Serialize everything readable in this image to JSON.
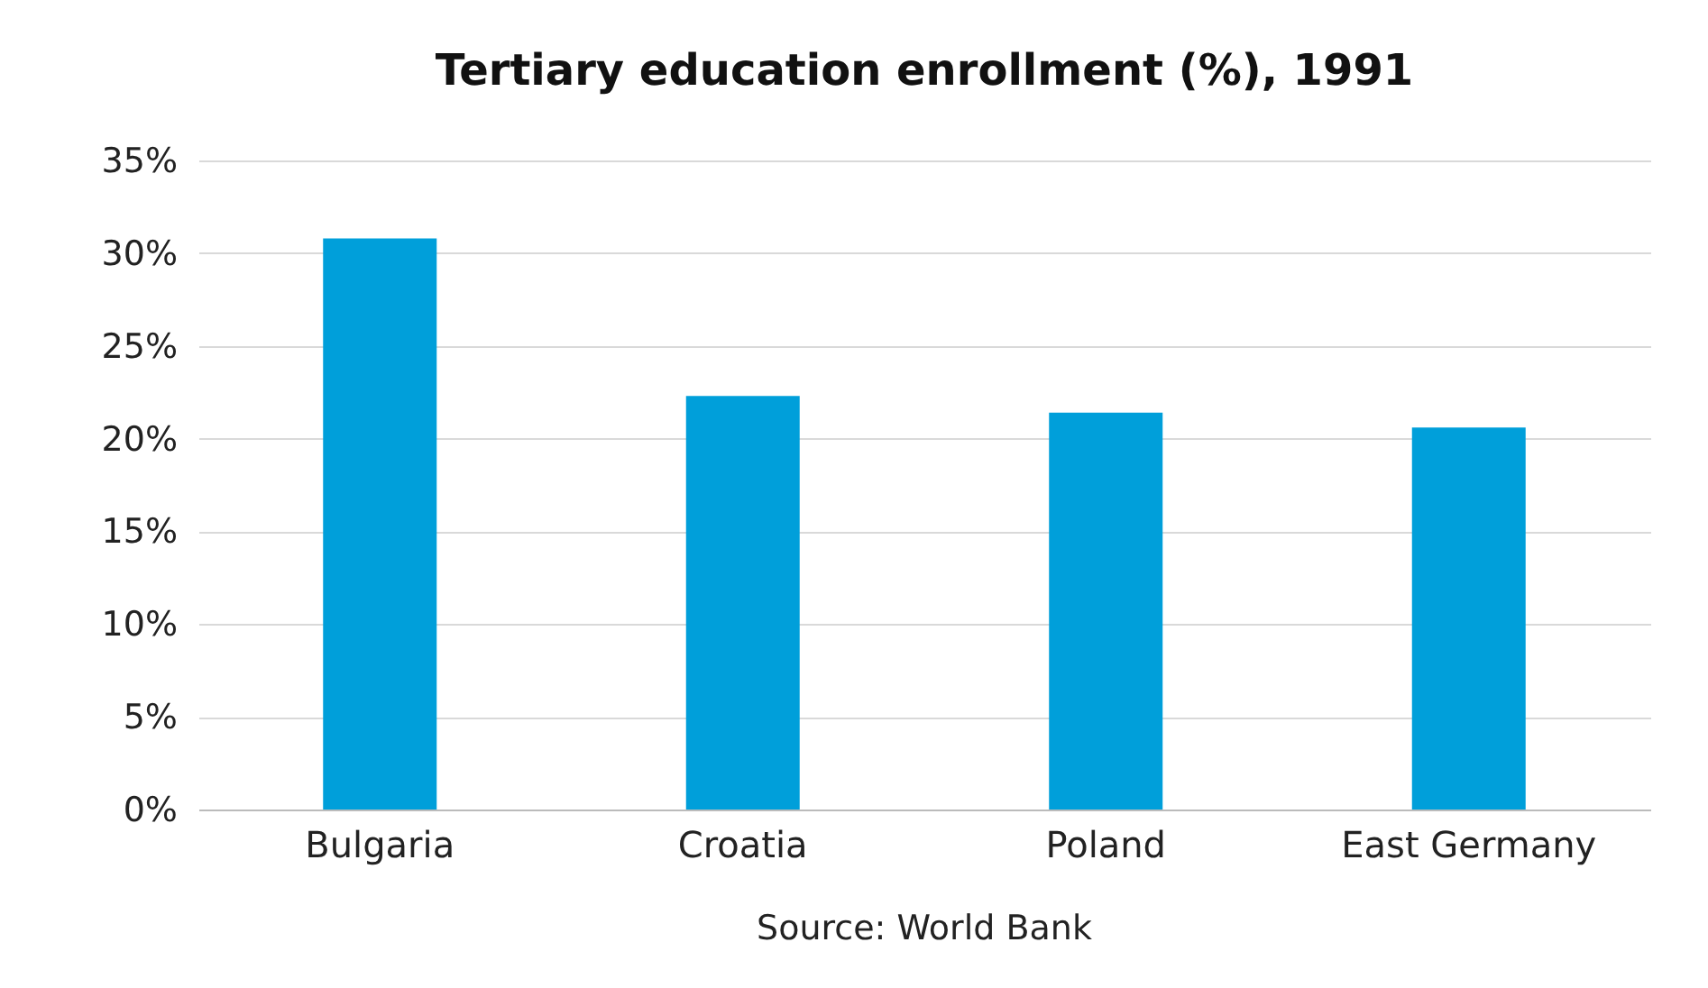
{
  "chart_data": {
    "type": "bar",
    "title": "Tertiary education enrollment (%), 1991",
    "categories": [
      "Bulgaria",
      "Croatia",
      "Poland",
      "East Germany"
    ],
    "values": [
      30.8,
      22.3,
      21.4,
      20.6
    ],
    "color": "#009fda",
    "ylim": [
      0,
      35
    ],
    "yticks": [
      {
        "value": 0,
        "label": "0%"
      },
      {
        "value": 5,
        "label": "5%"
      },
      {
        "value": 10,
        "label": "10%"
      },
      {
        "value": 15,
        "label": "15%"
      },
      {
        "value": 20,
        "label": "20%"
      },
      {
        "value": 25,
        "label": "25%"
      },
      {
        "value": 30,
        "label": "30%"
      },
      {
        "value": 35,
        "label": "35%"
      }
    ],
    "grid": "y",
    "annotations": [
      "Source: World Bank"
    ]
  }
}
